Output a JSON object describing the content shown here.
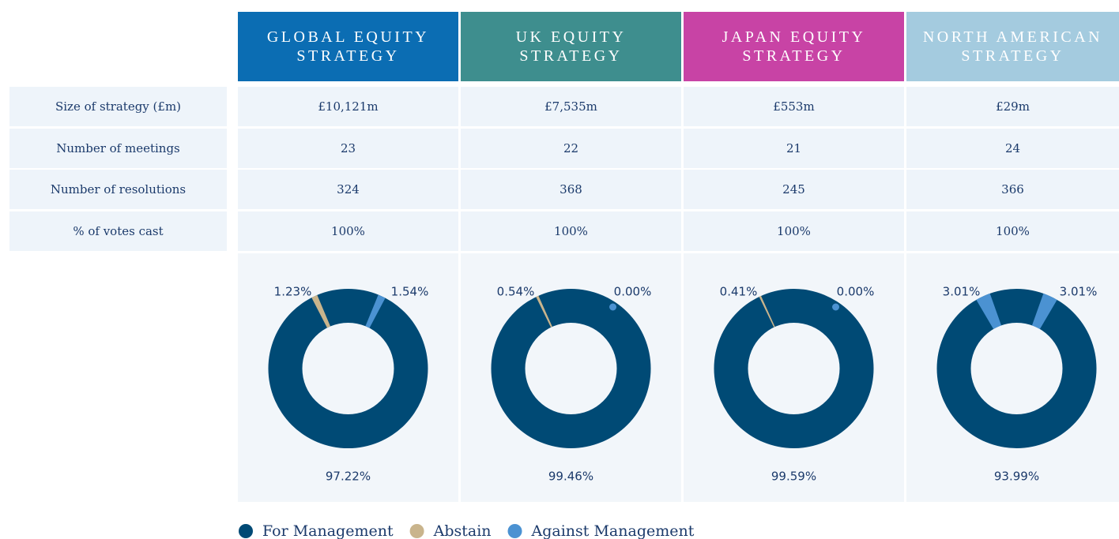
{
  "table": {
    "columns": [
      "GLOBAL EQUITY STRATEGY",
      "UK EQUITY STRATEGY",
      "JAPAN EQUITY STRATEGY",
      "NORTH AMERICAN STRATEGY"
    ],
    "column_colors": [
      "#0b6db3",
      "#3e8e8e",
      "#c843a5",
      "#a4cbdf"
    ],
    "rows": [
      [
        "Size of strategy (£m)",
        "£10,121m",
        "£7,535m",
        "£553m",
        "£29m"
      ],
      [
        "Number of meetings",
        "23",
        "22",
        "21",
        "24"
      ],
      [
        "Number of resolutions",
        "324",
        "368",
        "245",
        "366"
      ],
      [
        "% of votes cast",
        "100%",
        "100%",
        "100%",
        "100%"
      ]
    ]
  },
  "chart_data": [
    {
      "type": "donut",
      "categories": [
        "For Management",
        "Abstain",
        "Against Management"
      ],
      "colors": [
        "#004a75",
        "#c9b48c",
        "#4b92d2"
      ],
      "values": [
        97.22,
        1.23,
        1.54
      ],
      "value_labels": [
        "97.22%",
        "1.23%",
        "1.54%"
      ]
    },
    {
      "type": "donut",
      "categories": [
        "For Management",
        "Abstain",
        "Against Management"
      ],
      "colors": [
        "#004a75",
        "#c9b48c",
        "#4b92d2"
      ],
      "values": [
        99.46,
        0.54,
        0.0
      ],
      "value_labels": [
        "99.46%",
        "0.54%",
        "0.00%"
      ]
    },
    {
      "type": "donut",
      "categories": [
        "For Management",
        "Abstain",
        "Against Management"
      ],
      "colors": [
        "#004a75",
        "#c9b48c",
        "#4b92d2"
      ],
      "values": [
        99.59,
        0.41,
        0.0
      ],
      "value_labels": [
        "99.59%",
        "0.41%",
        "0.00%"
      ]
    },
    {
      "type": "donut",
      "categories": [
        "For Management",
        "Abstain",
        "Against Management"
      ],
      "colors": [
        "#004a75",
        "#4b92d2",
        "#4b92d2"
      ],
      "values": [
        93.99,
        3.01,
        3.01
      ],
      "value_labels": [
        "93.99%",
        "3.01%",
        "3.01%"
      ]
    }
  ]
}
